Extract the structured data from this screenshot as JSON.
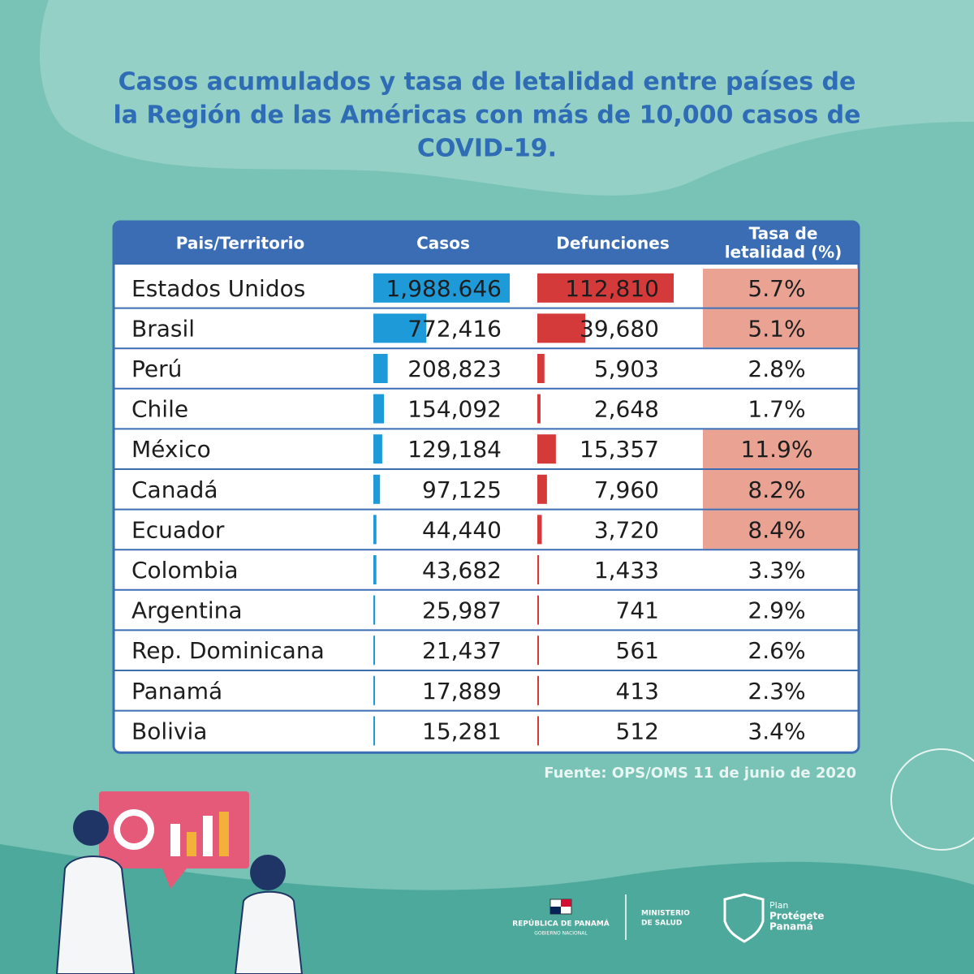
{
  "title": {
    "line1": "Casos acumulados y tasa de letalidad entre países de",
    "line2": "la Región de las Américas con más de 10,000 casos de",
    "line3": "COVID-19."
  },
  "table": {
    "headers": [
      "Pais/Territorio",
      "Casos",
      "Defunciones",
      [
        "Tasa de",
        "letalidad (%)"
      ]
    ],
    "rows": [
      {
        "country": "Estados Unidos",
        "casos": {
          "value": 1988646,
          "label": "1,988.646"
        },
        "defunciones": {
          "value": 112810,
          "label": "112,810"
        },
        "tasa": {
          "value": 5.7,
          "label": "5.7%"
        },
        "highlight": true
      },
      {
        "country": "Brasil",
        "casos": {
          "value": 772416,
          "label": "772,416"
        },
        "defunciones": {
          "value": 39680,
          "label": "39,680"
        },
        "tasa": {
          "value": 5.1,
          "label": "5.1%"
        },
        "highlight": true
      },
      {
        "country": "Perú",
        "casos": {
          "value": 208823,
          "label": "208,823"
        },
        "defunciones": {
          "value": 5903,
          "label": "5,903"
        },
        "tasa": {
          "value": 2.8,
          "label": "2.8%"
        },
        "highlight": false
      },
      {
        "country": "Chile",
        "casos": {
          "value": 154092,
          "label": "154,092"
        },
        "defunciones": {
          "value": 2648,
          "label": "2,648"
        },
        "tasa": {
          "value": 1.7,
          "label": "1.7%"
        },
        "highlight": false
      },
      {
        "country": "México",
        "casos": {
          "value": 129184,
          "label": "129,184"
        },
        "defunciones": {
          "value": 15357,
          "label": "15,357"
        },
        "tasa": {
          "value": 11.9,
          "label": "11.9%"
        },
        "highlight": true
      },
      {
        "country": "Canadá",
        "casos": {
          "value": 97125,
          "label": "97,125"
        },
        "defunciones": {
          "value": 7960,
          "label": "7,960"
        },
        "tasa": {
          "value": 8.2,
          "label": "8.2%"
        },
        "highlight": true
      },
      {
        "country": "Ecuador",
        "casos": {
          "value": 44440,
          "label": "44,440"
        },
        "defunciones": {
          "value": 3720,
          "label": "3,720"
        },
        "tasa": {
          "value": 8.4,
          "label": "8.4%"
        },
        "highlight": true
      },
      {
        "country": "Colombia",
        "casos": {
          "value": 43682,
          "label": "43,682"
        },
        "defunciones": {
          "value": 1433,
          "label": "1,433"
        },
        "tasa": {
          "value": 3.3,
          "label": "3.3%"
        },
        "highlight": false
      },
      {
        "country": "Argentina",
        "casos": {
          "value": 25987,
          "label": "25,987"
        },
        "defunciones": {
          "value": 741,
          "label": "741"
        },
        "tasa": {
          "value": 2.9,
          "label": "2.9%"
        },
        "highlight": false
      },
      {
        "country": "Rep. Dominicana",
        "casos": {
          "value": 21437,
          "label": "21,437"
        },
        "defunciones": {
          "value": 561,
          "label": "561"
        },
        "tasa": {
          "value": 2.6,
          "label": "2.6%"
        },
        "highlight": false
      },
      {
        "country": "Panamá",
        "casos": {
          "value": 17889,
          "label": "17,889"
        },
        "defunciones": {
          "value": 413,
          "label": "413"
        },
        "tasa": {
          "value": 2.3,
          "label": "2.3%"
        },
        "highlight": false
      },
      {
        "country": "Bolivia",
        "casos": {
          "value": 15281,
          "label": "15,281"
        },
        "defunciones": {
          "value": 512,
          "label": "512"
        },
        "tasa": {
          "value": 3.4,
          "label": "3.4%"
        },
        "highlight": false
      }
    ]
  },
  "source": "Fuente: OPS/OMS  11 de junio de 2020",
  "logos": {
    "republica": "REPÚBLICA DE PANAMÁ",
    "gobierno": "GOBIERNO NACIONAL",
    "ministerio1": "MINISTERIO",
    "ministerio2": "DE SALUD",
    "plan": "Plan",
    "protegete": "Protégete",
    "panama": "Panamá"
  }
}
